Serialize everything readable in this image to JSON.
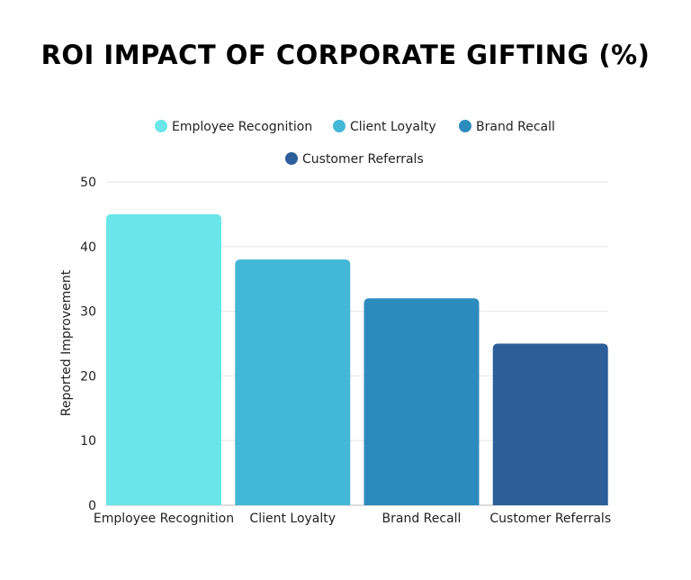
{
  "chart_data": {
    "type": "bar",
    "title": "ROI IMPACT OF CORPORATE GIFTING (%)",
    "xlabel": "",
    "ylabel": "Reported Improvement",
    "categories": [
      "Employee Recognition",
      "Client Loyalty",
      "Brand Recall",
      "Customer Referrals"
    ],
    "values": [
      45,
      38,
      32,
      25
    ],
    "colors": [
      "#6ae6ea",
      "#42b7d7",
      "#2b8bbd",
      "#2c5f99"
    ],
    "ylim": [
      0,
      50
    ],
    "yticks": [
      0,
      10,
      20,
      30,
      40,
      50
    ],
    "grid": true,
    "legend": {
      "placement": "top",
      "entries": [
        "Employee Recognition",
        "Client Loyalty",
        "Brand Recall",
        "Customer Referrals"
      ]
    }
  }
}
